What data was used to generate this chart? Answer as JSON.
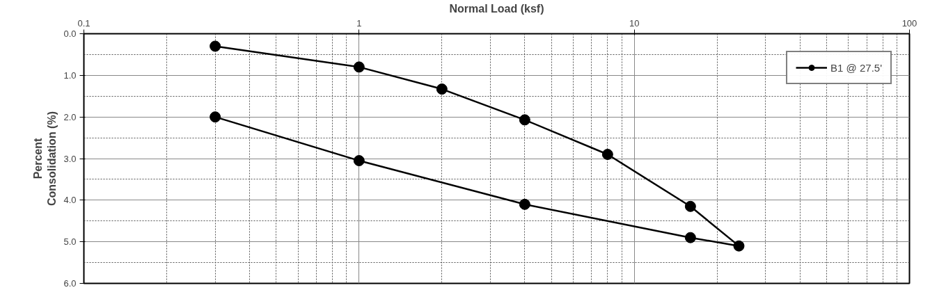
{
  "chart_data": {
    "type": "line",
    "xlabel": "Normal Load (ksf)",
    "ylabel": "Percent\nConsolidation (%)",
    "x": [
      0.3,
      1,
      2,
      4,
      8,
      16,
      24,
      16,
      4,
      1,
      0.3
    ],
    "series": [
      {
        "name": "B1 @ 27.5'",
        "color": "#000000",
        "values": [
          0.3,
          0.8,
          1.33,
          2.07,
          2.9,
          4.15,
          5.1,
          4.9,
          4.1,
          3.05,
          2.0
        ]
      }
    ],
    "log": "x",
    "xlim": [
      0.1,
      100
    ],
    "xticks": [
      0.1,
      1,
      10,
      100
    ],
    "ylim": [
      6.0,
      0.0
    ],
    "yticks": [
      {
        "value": 0,
        "label": "0.0"
      },
      {
        "value": 1,
        "label": "1.0"
      },
      {
        "value": 2,
        "label": "2.0"
      },
      {
        "value": 3,
        "label": "3.0"
      },
      {
        "value": 4,
        "label": "4.0"
      },
      {
        "value": 5,
        "label": "5.0"
      },
      {
        "value": 6,
        "label": "6.0"
      }
    ],
    "grid": true,
    "legend": "top right",
    "marker": "circle",
    "line_style": "solid"
  }
}
